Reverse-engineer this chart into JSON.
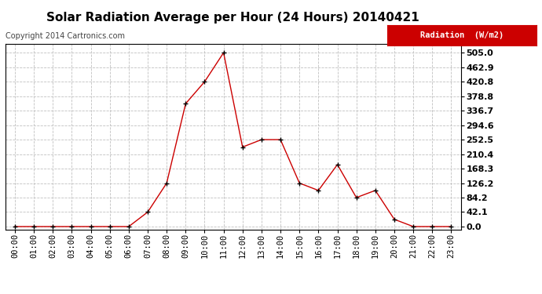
{
  "title": "Solar Radiation Average per Hour (24 Hours) 20140421",
  "copyright": "Copyright 2014 Cartronics.com",
  "legend_label": "Radiation  (W/m2)",
  "hours": [
    "00:00",
    "01:00",
    "02:00",
    "03:00",
    "04:00",
    "05:00",
    "06:00",
    "07:00",
    "08:00",
    "09:00",
    "10:00",
    "11:00",
    "12:00",
    "13:00",
    "14:00",
    "15:00",
    "16:00",
    "17:00",
    "18:00",
    "19:00",
    "20:00",
    "21:00",
    "22:00",
    "23:00"
  ],
  "values": [
    0.0,
    0.0,
    0.0,
    0.0,
    0.0,
    0.0,
    0.0,
    42.1,
    126.2,
    357.0,
    420.8,
    505.0,
    231.0,
    252.5,
    252.5,
    126.2,
    105.0,
    180.0,
    84.2,
    105.0,
    21.0,
    0.0,
    0.0,
    0.0
  ],
  "line_color": "#cc0000",
  "marker": "+",
  "marker_color": "#000000",
  "bg_color": "#ffffff",
  "grid_color": "#c0c0c0",
  "yticks": [
    0.0,
    42.1,
    84.2,
    126.2,
    168.3,
    210.4,
    252.5,
    294.6,
    336.7,
    378.8,
    420.8,
    462.9,
    505.0
  ],
  "ylim": [
    -8,
    530
  ],
  "legend_bg": "#cc0000",
  "legend_text_color": "#ffffff",
  "title_fontsize": 11,
  "copyright_fontsize": 7,
  "tick_fontsize": 7.5,
  "ytick_fontsize": 8
}
